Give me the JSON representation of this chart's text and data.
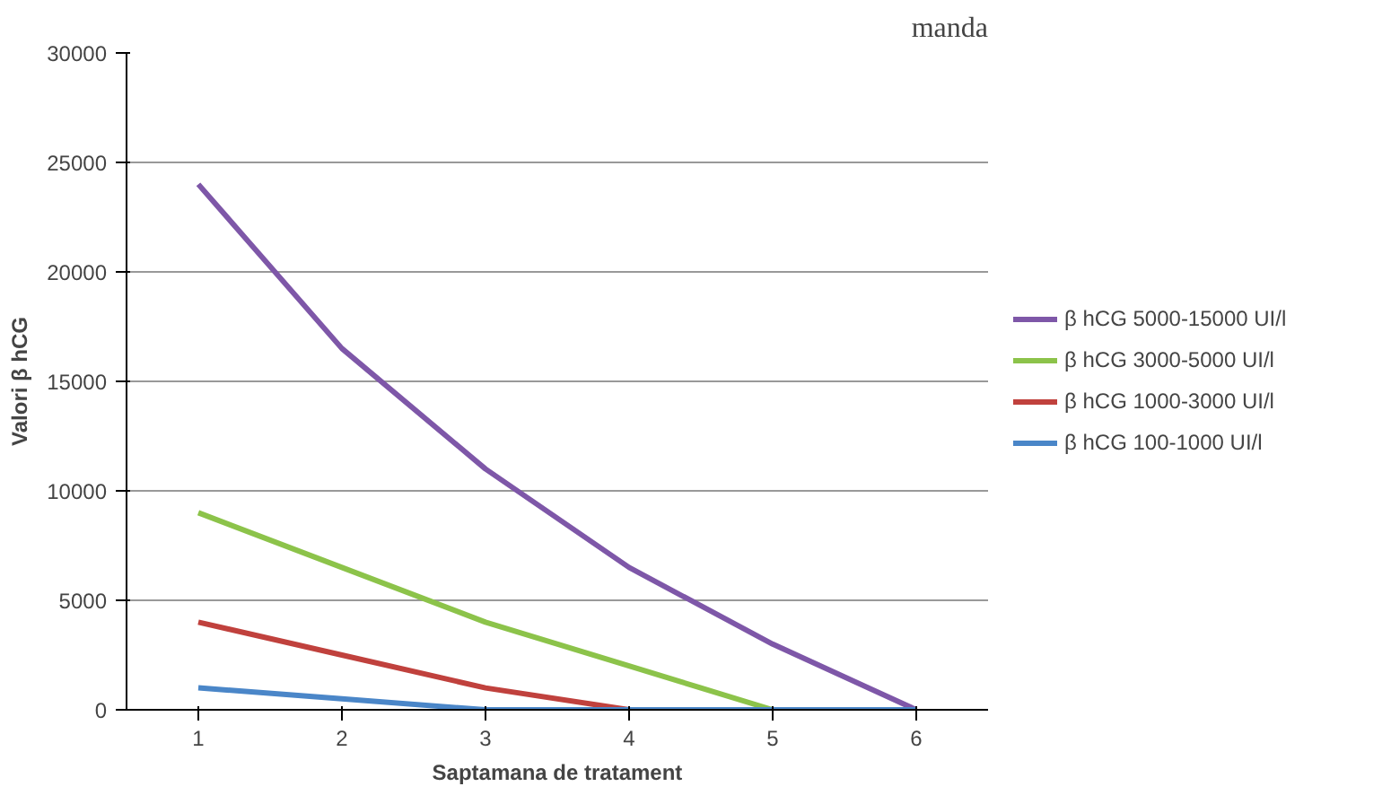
{
  "chart_data": {
    "type": "line",
    "xlabel": "Saptamana de tratament",
    "ylabel": "Valori β hCG",
    "categories": [
      "1",
      "2",
      "3",
      "4",
      "5",
      "6"
    ],
    "series": [
      {
        "name": "β hCG 5000-15000 UI/l",
        "color": "#7e57a8",
        "values": [
          24000,
          16500,
          11000,
          6500,
          3000,
          0
        ]
      },
      {
        "name": "β hCG 3000-5000 UI/l",
        "color": "#8cc34a",
        "values": [
          9000,
          6500,
          4000,
          2000,
          0,
          0
        ]
      },
      {
        "name": "β hCG 1000-3000 UI/l",
        "color": "#c0413d",
        "values": [
          4000,
          2500,
          1000,
          0,
          0,
          0
        ]
      },
      {
        "name": "β hCG 100-1000 UI/l",
        "color": "#4a86c8",
        "values": [
          1000,
          500,
          0,
          0,
          0,
          0
        ]
      }
    ],
    "ylim": [
      0,
      30000
    ],
    "yticks": [
      0,
      5000,
      10000,
      15000,
      20000,
      25000,
      30000
    ],
    "grid": "y",
    "legend": "right",
    "annotations": [
      "manda"
    ]
  }
}
